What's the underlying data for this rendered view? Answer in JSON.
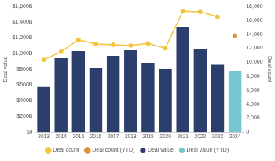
{
  "chart_data": {
    "type": "bar",
    "categories": [
      "2013",
      "2014",
      "2015",
      "2016",
      "2017",
      "2018",
      "2019",
      "2020",
      "2021",
      "2022",
      "2023",
      "2024"
    ],
    "series": [
      {
        "name": "Deal value",
        "type": "bar",
        "color": "#2c3e6b",
        "values": [
          575,
          940,
          1030,
          815,
          970,
          1040,
          880,
          800,
          1340,
          1060,
          855,
          null
        ]
      },
      {
        "name": "Deal value (YTD)",
        "type": "bar",
        "color": "#76c5d2",
        "values": [
          null,
          null,
          null,
          null,
          null,
          null,
          null,
          null,
          null,
          null,
          null,
          770
        ]
      },
      {
        "name": "Deal count",
        "type": "line",
        "color": "#f2c53d",
        "axis": "y2",
        "marker": "circle",
        "line_style": "solid",
        "values": [
          10350,
          11500,
          13200,
          12600,
          12500,
          12400,
          12700,
          12000,
          17300,
          17200,
          16500,
          null
        ]
      },
      {
        "name": "Deal count (YTD)",
        "type": "line",
        "color": "#e0903a",
        "axis": "y2",
        "marker": "circle",
        "line_style": "none",
        "values": [
          null,
          null,
          null,
          null,
          null,
          null,
          null,
          null,
          null,
          null,
          null,
          13800
        ]
      }
    ],
    "y_label": "Deal value",
    "y2_label": "Deal count",
    "ylim": [
      0,
      1600
    ],
    "yticks": [
      {
        "value": 0,
        "label": "$0"
      },
      {
        "value": 200,
        "label": "$200B"
      },
      {
        "value": 400,
        "label": "$400B"
      },
      {
        "value": 600,
        "label": "$600B"
      },
      {
        "value": 800,
        "label": "$800B"
      },
      {
        "value": 1000,
        "label": "$1,000B"
      },
      {
        "value": 1200,
        "label": "$1,200B"
      },
      {
        "value": 1400,
        "label": "$1,400B"
      },
      {
        "value": 1600,
        "label": "$1,600B"
      }
    ],
    "y2lim": [
      0,
      18000
    ],
    "y2ticks": [
      0,
      {
        "value": 2000,
        "label": "2,000"
      },
      {
        "value": 4000,
        "label": "4,000"
      },
      {
        "value": 6000,
        "label": "6,000"
      },
      {
        "value": 8000,
        "label": "8,000"
      },
      {
        "value": 10000,
        "label": "10,000"
      },
      {
        "value": 12000,
        "label": "12,000"
      },
      {
        "value": 14000,
        "label": "14,000"
      },
      {
        "value": 16000,
        "label": "16,000"
      },
      {
        "value": 18000,
        "label": "18,000"
      }
    ],
    "grid": false,
    "legend": "bottom"
  }
}
